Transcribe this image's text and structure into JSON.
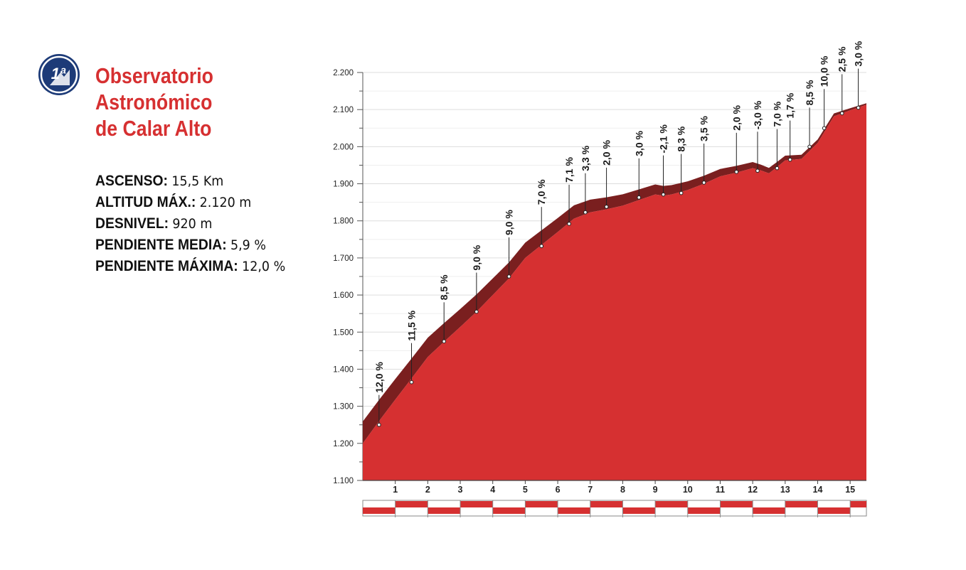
{
  "climb": {
    "category_badge": "1ª",
    "title_lines": [
      "Observatorio",
      "Astronómico",
      "de Calar Alto"
    ],
    "stats": [
      {
        "key": "ASCENSO:",
        "value": "15,5 Km"
      },
      {
        "key": "ALTITUD MÁX.:",
        "value": "2.120 m"
      },
      {
        "key": "DESNIVEL:",
        "value": "920 m"
      },
      {
        "key": "PENDIENTE MEDIA:",
        "value": "5,9 %"
      },
      {
        "key": "PENDIENTE MÁXIMA:",
        "value": "12,0 %"
      }
    ],
    "colors": {
      "title": "#d63031",
      "fill": "#d63031",
      "shadow": "#7a1f1f",
      "max_gradient_label": "#e0282c",
      "badge": "#1d3b78"
    }
  },
  "chart_data": {
    "type": "area",
    "title": "",
    "xlabel": "",
    "ylabel": "",
    "xlim": [
      0,
      15.5
    ],
    "ylim": [
      1100,
      2200
    ],
    "y_ticks": [
      1100,
      1200,
      1300,
      1400,
      1500,
      1600,
      1700,
      1800,
      1900,
      2000,
      2100,
      2200
    ],
    "y_tick_labels": [
      "1.100",
      "1.200",
      "1.300",
      "1.400",
      "1.500",
      "1.600",
      "1.700",
      "1.800",
      "1.900",
      "2.000",
      "2.100",
      "2.200"
    ],
    "x_ticks": [
      1,
      2,
      3,
      4,
      5,
      6,
      7,
      8,
      9,
      10,
      11,
      12,
      13,
      14,
      15
    ],
    "x_tick_labels": [
      "1",
      "2",
      "3",
      "4",
      "5",
      "6",
      "7",
      "8",
      "9",
      "10",
      "11",
      "12",
      "13",
      "14",
      "15"
    ],
    "grid": true,
    "profile": {
      "x": [
        0,
        0.5,
        1,
        1.5,
        2,
        2.5,
        3,
        3.5,
        4,
        4.5,
        5,
        5.5,
        6,
        6.5,
        7,
        7.5,
        8,
        8.5,
        9,
        9.25,
        9.5,
        10,
        10.5,
        11,
        11.5,
        12,
        12.25,
        12.5,
        12.75,
        13,
        13.5,
        14,
        14.5,
        15,
        15.5
      ],
      "elevation": [
        1200,
        1260,
        1318,
        1375,
        1433,
        1474,
        1514,
        1555,
        1600,
        1645,
        1700,
        1735,
        1770,
        1806,
        1823,
        1831,
        1841,
        1856,
        1871,
        1868,
        1871,
        1883,
        1900,
        1920,
        1930,
        1942,
        1936,
        1928,
        1945,
        1963,
        1967,
        2010,
        2082,
        2098,
        2113
      ]
    },
    "segment_gradients": [
      {
        "km": 0.5,
        "elevation": 1250,
        "label": "12,0 %",
        "max": true
      },
      {
        "km": 1.5,
        "elevation": 1365,
        "label": "11,5 %"
      },
      {
        "km": 2.5,
        "elevation": 1475,
        "label": "8,5 %"
      },
      {
        "km": 3.5,
        "elevation": 1555,
        "label": "9,0 %"
      },
      {
        "km": 4.5,
        "elevation": 1650,
        "label": "9,0 %"
      },
      {
        "km": 5.5,
        "elevation": 1732,
        "label": "7,0 %"
      },
      {
        "km": 6.35,
        "elevation": 1792,
        "label": "7,1 %"
      },
      {
        "km": 6.85,
        "elevation": 1823,
        "label": "3,3 %"
      },
      {
        "km": 7.5,
        "elevation": 1838,
        "label": "2,0 %"
      },
      {
        "km": 8.5,
        "elevation": 1863,
        "label": "3,0 %"
      },
      {
        "km": 9.25,
        "elevation": 1871,
        "label": "-2,1 %"
      },
      {
        "km": 9.8,
        "elevation": 1875,
        "label": "8,3 %"
      },
      {
        "km": 10.5,
        "elevation": 1903,
        "label": "3,5 %"
      },
      {
        "km": 11.5,
        "elevation": 1932,
        "label": "2,0 %"
      },
      {
        "km": 12.15,
        "elevation": 1935,
        "label": "-3,0 %"
      },
      {
        "km": 12.75,
        "elevation": 1942,
        "label": "7,0 %"
      },
      {
        "km": 13.15,
        "elevation": 1965,
        "label": "1,7 %"
      },
      {
        "km": 13.75,
        "elevation": 2000,
        "label": "8,5 %"
      },
      {
        "km": 14.2,
        "elevation": 2050,
        "label": "10,0 %"
      },
      {
        "km": 14.75,
        "elevation": 2090,
        "label": "2,5 %"
      },
      {
        "km": 15.25,
        "elevation": 2105,
        "label": "3,0 %"
      }
    ]
  }
}
